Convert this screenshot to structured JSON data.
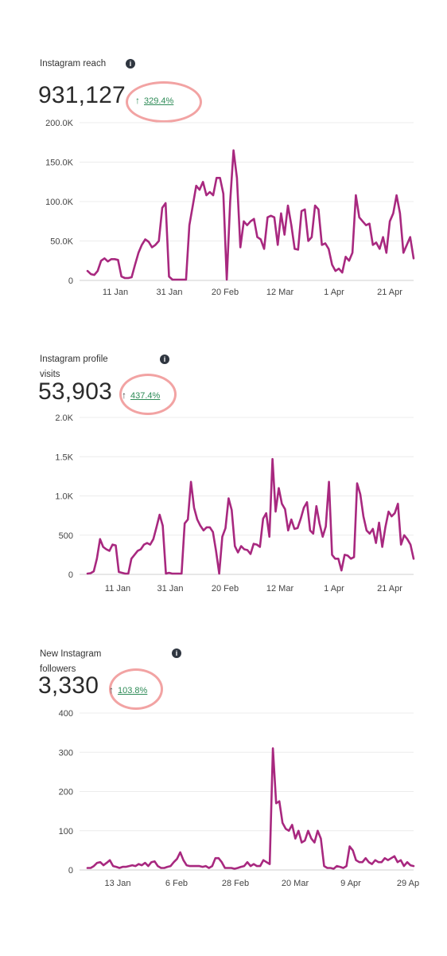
{
  "panels": [
    {
      "label": "Instagram reach",
      "value": "931,127",
      "change": "329.4%",
      "chart_data": {
        "type": "line",
        "color": "#a8287f",
        "yticks": [
          "200.0K",
          "150.0K",
          "100.0K",
          "50.0K",
          "0"
        ],
        "ylim": [
          0,
          200000
        ],
        "xticks": [
          "11 Jan",
          "31 Jan",
          "20 Feb",
          "12 Mar",
          "1 Apr",
          "21 Apr"
        ],
        "values": [
          12000,
          8000,
          7000,
          12000,
          25000,
          28000,
          24000,
          27000,
          27000,
          26000,
          5000,
          3000,
          3000,
          4000,
          20000,
          35000,
          45000,
          52000,
          49000,
          42000,
          45000,
          50000,
          92000,
          98000,
          5000,
          1000,
          1000,
          1000,
          1000,
          1000,
          70000,
          95000,
          120000,
          115000,
          125000,
          108000,
          112000,
          108000,
          130000,
          130000,
          110000,
          1000,
          100000,
          165000,
          130000,
          42000,
          75000,
          70000,
          75000,
          78000,
          55000,
          52000,
          40000,
          80000,
          82000,
          80000,
          45000,
          85000,
          58000,
          95000,
          70000,
          40000,
          39000,
          88000,
          90000,
          50000,
          55000,
          95000,
          90000,
          45000,
          47000,
          40000,
          20000,
          12000,
          15000,
          10000,
          30000,
          25000,
          35000,
          108000,
          80000,
          75000,
          70000,
          72000,
          45000,
          48000,
          40000,
          55000,
          35000,
          75000,
          85000,
          108000,
          85000,
          35000,
          45000,
          55000,
          28000
        ]
      }
    },
    {
      "label": "Instagram profile visits",
      "value": "53,903",
      "change": "437.4%",
      "chart_data": {
        "type": "line",
        "color": "#a8287f",
        "yticks": [
          "2.0K",
          "1.5K",
          "1.0K",
          "500",
          "0"
        ],
        "ylim": [
          0,
          2000
        ],
        "xticks": [
          "11 Jan",
          "31 Jan",
          "20 Feb",
          "12 Mar",
          "1 Apr",
          "21 Apr"
        ],
        "values": [
          10,
          15,
          40,
          200,
          450,
          350,
          320,
          300,
          380,
          370,
          30,
          20,
          10,
          10,
          200,
          250,
          300,
          320,
          380,
          400,
          380,
          450,
          600,
          760,
          620,
          10,
          20,
          10,
          10,
          10,
          10,
          650,
          700,
          1180,
          850,
          700,
          620,
          560,
          600,
          600,
          540,
          300,
          10,
          480,
          590,
          970,
          820,
          360,
          280,
          360,
          320,
          310,
          260,
          390,
          380,
          350,
          710,
          780,
          480,
          1470,
          800,
          1100,
          900,
          830,
          560,
          700,
          580,
          590,
          710,
          850,
          920,
          560,
          520,
          870,
          650,
          480,
          610,
          1180,
          250,
          200,
          200,
          50,
          250,
          240,
          200,
          220,
          1160,
          1020,
          740,
          560,
          520,
          580,
          400,
          660,
          350,
          600,
          800,
          740,
          780,
          900,
          380,
          500,
          450,
          380,
          200
        ]
      }
    },
    {
      "label": "New Instagram followers",
      "value": "3,330",
      "change": "103.8%",
      "chart_data": {
        "type": "line",
        "color": "#a8287f",
        "yticks": [
          "400",
          "300",
          "200",
          "100",
          "0"
        ],
        "ylim": [
          0,
          400
        ],
        "xticks": [
          "13 Jan",
          "6 Feb",
          "28 Feb",
          "20 Mar",
          "9 Apr",
          "29 Ap"
        ],
        "values": [
          5,
          5,
          10,
          18,
          20,
          12,
          18,
          25,
          10,
          8,
          5,
          8,
          8,
          10,
          12,
          10,
          15,
          12,
          18,
          10,
          20,
          22,
          10,
          5,
          5,
          8,
          10,
          20,
          28,
          45,
          25,
          12,
          10,
          10,
          10,
          10,
          8,
          10,
          5,
          10,
          30,
          30,
          20,
          5,
          5,
          5,
          3,
          5,
          8,
          10,
          20,
          10,
          15,
          10,
          10,
          25,
          20,
          15,
          310,
          170,
          175,
          120,
          105,
          100,
          115,
          80,
          100,
          70,
          75,
          100,
          80,
          70,
          100,
          80,
          10,
          5,
          5,
          3,
          10,
          8,
          5,
          10,
          60,
          50,
          25,
          20,
          20,
          30,
          20,
          15,
          25,
          20,
          20,
          30,
          25,
          30,
          35,
          20,
          25,
          10,
          20,
          12,
          10
        ]
      }
    }
  ]
}
